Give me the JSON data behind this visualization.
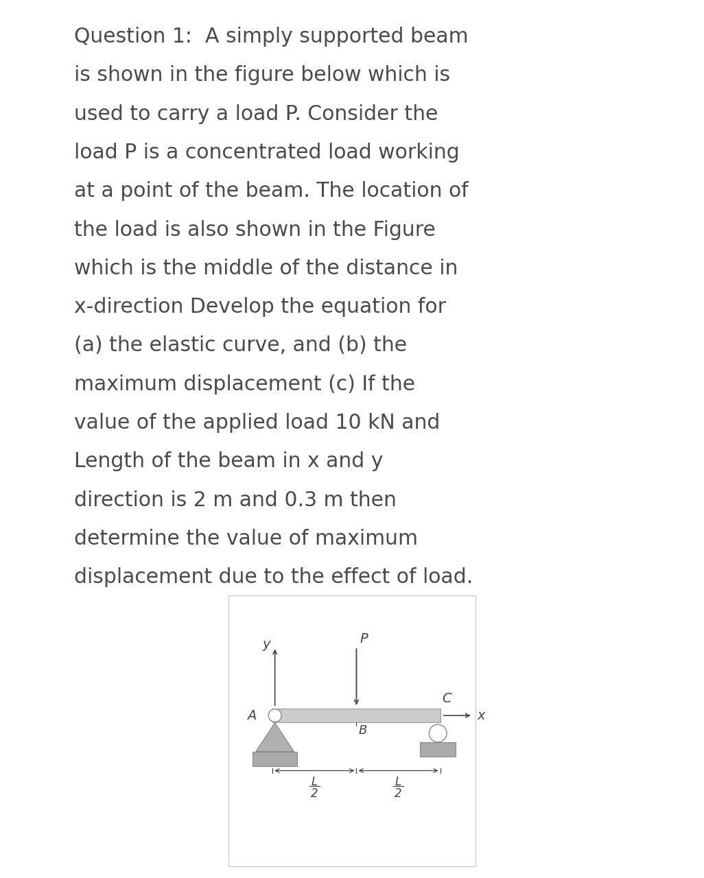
{
  "background_color": "#ffffff",
  "text_color": "#4a4a4a",
  "text_lines": [
    "Question 1:  A simply supported beam",
    "is shown in the figure below which is",
    "used to carry a load P. Consider the",
    "load P is a concentrated load working",
    "at a point of the beam. The location of",
    "the load is also shown in the Figure",
    "which is the middle of the distance in",
    "x-direction Develop the equation for",
    "(a) the elastic curve, and (b) the",
    "maximum displacement (c) If the",
    "value of the applied load 10 kN and",
    "Length of the beam in x and y",
    "direction is 2 m and 0.3 m then",
    "determine the value of maximum",
    "displacement due to the effect of load."
  ],
  "font_size": 21.5,
  "border_color": "#cccccc",
  "beam_color": "#cccccc",
  "beam_edge_color": "#999999",
  "support_color": "#b0b0b0",
  "support_edge_color": "#888888",
  "ground_color": "#aaaaaa",
  "arrow_color": "#555555",
  "label_color": "#444444",
  "axis_color": "#444444"
}
